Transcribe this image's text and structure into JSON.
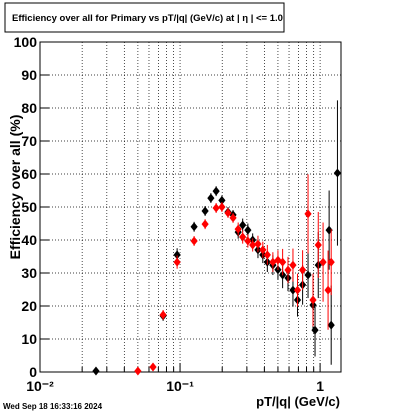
{
  "chart_data": {
    "type": "scatter",
    "title": "Efficiency over all for Primary vs pT/|q| (GeV/c) at |  η | <= 1.0",
    "x_label": "pT/|q| (GeV/c)",
    "y_label": "Efficiency over all (%)",
    "footer": "Wed Sep 18 16:33:16 2024",
    "x_log": true,
    "xlim": [
      0.01,
      1.41
    ],
    "ylim": [
      0,
      100
    ],
    "xticks": [
      {
        "value": 0.01,
        "label": "10⁻²"
      },
      {
        "value": 0.1,
        "label": "10⁻¹"
      },
      1
    ],
    "x_minor_ticks": [
      0.02,
      0.03,
      0.04,
      0.05,
      0.06,
      0.07,
      0.08,
      0.09,
      0.2,
      0.3,
      0.4,
      0.5,
      0.6,
      0.7,
      0.8,
      0.9
    ],
    "yticks": [
      0,
      10,
      20,
      30,
      40,
      50,
      60,
      70,
      80,
      90,
      100
    ],
    "grid": true,
    "series": [
      {
        "color": "#000000",
        "x": [
          0.0251,
          0.0757,
          0.0953,
          0.126,
          0.151,
          0.166,
          0.181,
          0.199,
          0.22,
          0.239,
          0.26,
          0.28,
          0.305,
          0.33,
          0.36,
          0.39,
          0.42,
          0.46,
          0.5,
          0.54,
          0.59,
          0.64,
          0.69,
          0.75,
          0.82,
          0.89,
          0.92,
          0.97,
          1.16,
          1.2,
          1.33
        ],
        "values": [
          0.3,
          17,
          35.5,
          44,
          48.8,
          52.7,
          54.8,
          52,
          48.5,
          47.6,
          42.4,
          44.5,
          43,
          40,
          37,
          35.5,
          33.3,
          32.4,
          31,
          29.4,
          28.5,
          24.8,
          21.8,
          26.4,
          29.4,
          20.3,
          12.7,
          32.4,
          43,
          14.2,
          60.3
        ],
        "errors": [
          0.5,
          1.5,
          2,
          1.5,
          1.5,
          1.5,
          1.5,
          1.5,
          1.5,
          1.5,
          2,
          2,
          2,
          2,
          2.5,
          2.5,
          3,
          3,
          3,
          4,
          4,
          5,
          5,
          6,
          7,
          8,
          8,
          10,
          12,
          12,
          22
        ]
      },
      {
        "color": "#ff0000",
        "x": [
          0.05,
          0.0641,
          0.0757,
          0.0953,
          0.126,
          0.151,
          0.181,
          0.199,
          0.22,
          0.239,
          0.26,
          0.28,
          0.305,
          0.33,
          0.36,
          0.39,
          0.42,
          0.46,
          0.5,
          0.54,
          0.59,
          0.64,
          0.69,
          0.75,
          0.82,
          0.89,
          0.97,
          1.05,
          1.14,
          1.2
        ],
        "values": [
          0.3,
          1.5,
          17.3,
          33.3,
          39.7,
          44.8,
          49.7,
          50,
          48.2,
          46.7,
          43.3,
          40.9,
          39.7,
          38.5,
          38.8,
          37,
          35.5,
          33.3,
          33.9,
          33.3,
          30.9,
          32.4,
          24.8,
          30.9,
          47.9,
          21.8,
          38.5,
          33.3,
          24.8,
          33.3
        ],
        "errors": [
          0.5,
          1,
          1.5,
          2,
          1.5,
          1.5,
          1.5,
          1.5,
          1.5,
          1.5,
          2,
          2,
          2,
          2,
          2.5,
          2.5,
          3,
          3,
          3,
          4,
          4,
          5,
          5,
          6,
          12,
          8,
          10,
          12,
          12,
          10
        ]
      }
    ]
  }
}
